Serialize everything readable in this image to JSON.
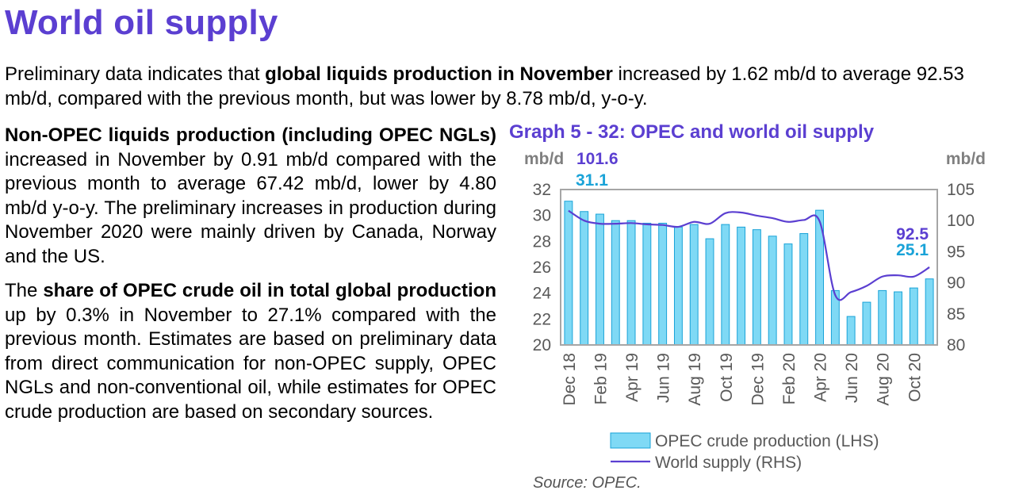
{
  "header": {
    "title": "World oil supply"
  },
  "intro": {
    "p1": "Preliminary data indicates that ",
    "b1": "global liquids production in November",
    "p2": " increased by 1.62 mb/d to average 92.53 mb/d, compared with the previous month, but was lower by 8.78 mb/d, y-o-y."
  },
  "nonopec": {
    "b1": "Non-OPEC liquids production (including OPEC NGLs)",
    "p1": " increased in November by 0.91 mb/d compared with the previous month to average 67.42 mb/d, lower by 4.80 mb/d y-o-y. The preliminary increases in production during November 2020 were mainly driven by Canada, Norway and the US."
  },
  "share": {
    "p1": "The ",
    "b1": "share of OPEC crude oil in total global production",
    "p2": " up by 0.3% in November to 27.1% compared with the previous month. Estimates are based on preliminary data from direct communication for non-OPEC supply, OPEC NGLs and non-conventional oil, while estimates for OPEC crude production are based on secondary sources."
  },
  "graph": {
    "title": "Graph 5 - 32: OPEC and world oil supply",
    "source": "Source: OPEC."
  },
  "chart_data": {
    "type": "bar",
    "categories": [
      "Dec 18",
      "Jan 19",
      "Feb 19",
      "Mar 19",
      "Apr 19",
      "May 19",
      "Jun 19",
      "Jul 19",
      "Aug 19",
      "Sep 19",
      "Oct 19",
      "Nov 19",
      "Dec 19",
      "Jan 20",
      "Feb 20",
      "Mar 20",
      "Apr 20",
      "May 20",
      "Jun 20",
      "Jul 20",
      "Aug 20",
      "Sep 20",
      "Oct 20",
      "Nov 20"
    ],
    "tick_labels": [
      "Dec 18",
      "Feb 19",
      "Apr 19",
      "Jun 19",
      "Aug 19",
      "Oct 19",
      "Dec 19",
      "Feb 20",
      "Apr 20",
      "Jun 20",
      "Aug 20",
      "Oct 20"
    ],
    "series": [
      {
        "name": "OPEC crude production (LHS)",
        "type": "bar",
        "axis": "left",
        "values": [
          31.1,
          30.3,
          30.1,
          29.6,
          29.6,
          29.4,
          29.4,
          29.1,
          29.3,
          28.2,
          29.3,
          29.1,
          28.9,
          28.4,
          27.8,
          28.6,
          30.4,
          24.2,
          22.2,
          23.3,
          24.2,
          24.1,
          24.4,
          25.1
        ],
        "color": "#7fd9f5",
        "edge": "#1aa3d8"
      },
      {
        "name": "World supply (RHS)",
        "type": "line",
        "axis": "right",
        "values": [
          101.6,
          100.0,
          99.5,
          99.5,
          99.6,
          99.4,
          99.3,
          99.0,
          99.8,
          99.5,
          101.2,
          101.3,
          100.8,
          100.4,
          99.8,
          100.1,
          99.9,
          88.0,
          88.5,
          89.5,
          91.0,
          91.2,
          91.0,
          92.5
        ],
        "color": "#5b3fd1"
      }
    ],
    "left_axis": {
      "unit": "mb/d",
      "ylim": [
        20,
        32
      ],
      "ticks": [
        20,
        22,
        24,
        26,
        28,
        30,
        32
      ]
    },
    "right_axis": {
      "unit": "mb/d",
      "ylim": [
        80,
        105
      ],
      "ticks": [
        80,
        85,
        90,
        95,
        100,
        105
      ]
    },
    "annotations": {
      "first_world": "101.6",
      "first_opec": "31.1",
      "last_world": "92.5",
      "last_opec": "25.1"
    },
    "legend": {
      "placement": "bottom"
    },
    "grid": false
  }
}
